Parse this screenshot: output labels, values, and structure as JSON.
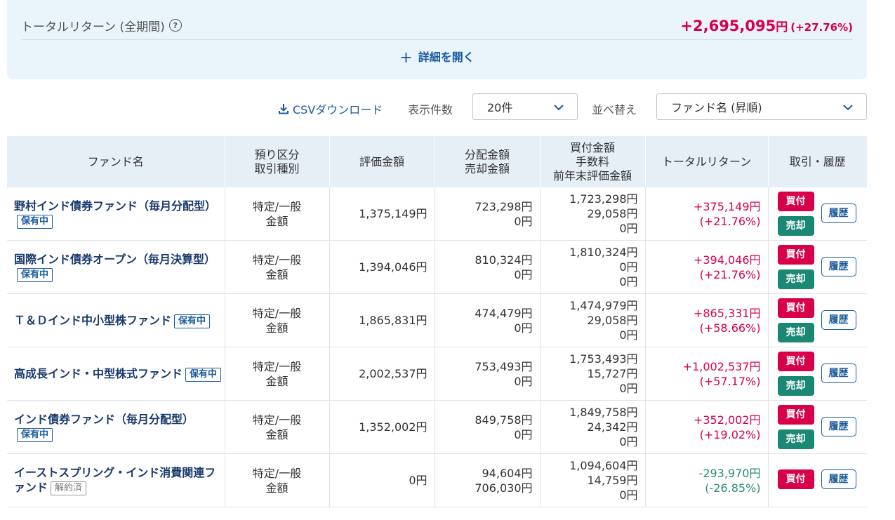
{
  "summary": {
    "title": "トータルリターン (全期間)",
    "help_glyph": "?",
    "amount": "+2,695,095",
    "yen": "円",
    "pct": "(+27.76%)",
    "expand_label": "詳細を開く"
  },
  "controls": {
    "csv_label": "CSVダウンロード",
    "count_label": "表示件数",
    "count_value": "20件",
    "sort_label": "並べ替え",
    "sort_value": "ファンド名 (昇順)"
  },
  "table": {
    "headers": {
      "name": "ファンド名",
      "account_1": "預り区分",
      "account_2": "取引種別",
      "value": "評価金額",
      "dist_1": "分配金額",
      "dist_2": "売却金額",
      "buy_1": "買付金額",
      "buy_2": "手数料",
      "buy_3": "前年末評価金額",
      "return": "トータルリターン",
      "actions": "取引・履歴"
    },
    "buy_label": "買付",
    "sell_label": "売却",
    "history_label": "履歴",
    "rows": [
      {
        "name": "野村インド債券ファンド（毎月分配型）",
        "status": "保有中",
        "account": "特定/一般",
        "type": "金額",
        "value": "1,375,149円",
        "dist": "723,298円",
        "sold": "0円",
        "buy": "1,723,298円",
        "fee": "29,058円",
        "prev": "0円",
        "ret": "+375,149円",
        "ret_pct": "(+21.76%)"
      },
      {
        "name": "国際インド債券オープン（毎月決算型）",
        "status": "保有中",
        "account": "特定/一般",
        "type": "金額",
        "value": "1,394,046円",
        "dist": "810,324円",
        "sold": "0円",
        "buy": "1,810,324円",
        "fee": "0円",
        "prev": "0円",
        "ret": "+394,046円",
        "ret_pct": "(+21.76%)"
      },
      {
        "name": "Ｔ＆Ｄインド中小型株ファンド",
        "status": "保有中",
        "account": "特定/一般",
        "type": "金額",
        "value": "1,865,831円",
        "dist": "474,479円",
        "sold": "0円",
        "buy": "1,474,979円",
        "fee": "29,058円",
        "prev": "0円",
        "ret": "+865,331円",
        "ret_pct": "(+58.66%)"
      },
      {
        "name": "高成長インド・中型株式ファンド",
        "status": "保有中",
        "account": "特定/一般",
        "type": "金額",
        "value": "2,002,537円",
        "dist": "753,493円",
        "sold": "0円",
        "buy": "1,753,493円",
        "fee": "15,727円",
        "prev": "0円",
        "ret": "+1,002,537円",
        "ret_pct": "(+57.17%)"
      },
      {
        "name": "インド債券ファンド（毎月分配型）",
        "status": "保有中",
        "account": "特定/一般",
        "type": "金額",
        "value": "1,352,002円",
        "dist": "849,758円",
        "sold": "0円",
        "buy": "1,849,758円",
        "fee": "24,342円",
        "prev": "0円",
        "ret": "+352,002円",
        "ret_pct": "(+19.02%)"
      },
      {
        "name": "イーストスプリング・インド消費関連ファンド",
        "status": "解約済",
        "account": "特定/一般",
        "type": "金額",
        "value": "0円",
        "dist": "94,604円",
        "sold": "706,030円",
        "buy": "1,094,604円",
        "fee": "14,759円",
        "prev": "0円",
        "ret": "-293,970円",
        "ret_pct": "(-26.85%)"
      }
    ]
  },
  "colors": {
    "accent": "#1a5a9e",
    "positive": "#d8004a",
    "negative": "#2a8a78",
    "sell": "#1b8874"
  }
}
